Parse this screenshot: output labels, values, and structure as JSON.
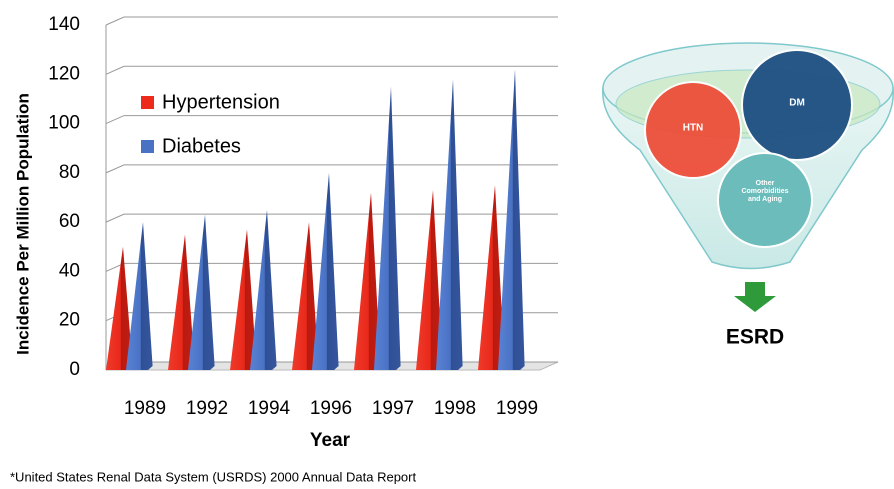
{
  "chart_data": {
    "type": "bar",
    "categories": [
      "1989",
      "1992",
      "1994",
      "1996",
      "1997",
      "1998",
      "1999"
    ],
    "series": [
      {
        "name": "Hypertension",
        "color": "#ee2a1b",
        "values": [
          50,
          55,
          57,
          60,
          72,
          73,
          75
        ]
      },
      {
        "name": "Diabetes",
        "color": "#4a72c4",
        "values": [
          60,
          63,
          65,
          80,
          115,
          118,
          122
        ]
      }
    ],
    "ylim": [
      0,
      140
    ],
    "yticks": [
      0,
      20,
      40,
      60,
      80,
      100,
      120,
      140
    ],
    "grid": true,
    "ylabel": "Incidence Per Million Population",
    "xlabel": "Year"
  },
  "footnote": "*United States Renal Data System  (USRDS) 2000 Annual Data Report",
  "diagram": {
    "circles": [
      "HTN",
      "DM",
      "Other Comorbidities and Aging"
    ],
    "result": "ESRD"
  }
}
